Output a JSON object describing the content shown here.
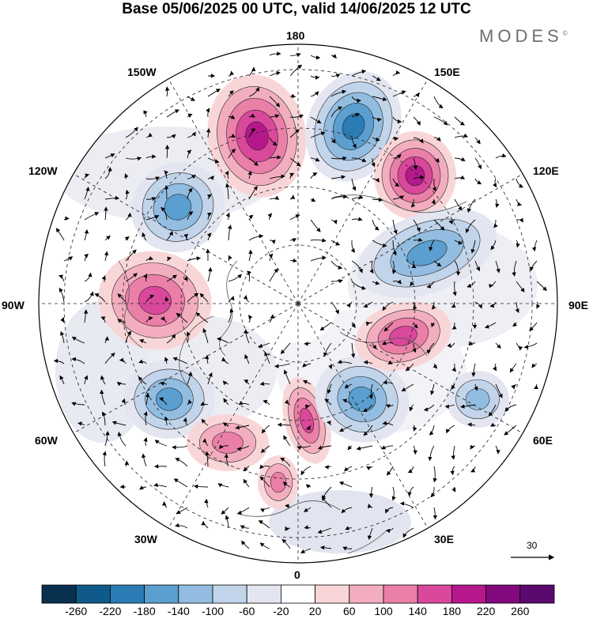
{
  "title": "Base 05/06/2025 00 UTC, valid 14/06/2025 12 UTC",
  "brand": "MODES",
  "brand_mark": "©",
  "longitude_labels": {
    "top": "180",
    "bottom": "0",
    "left": "90W",
    "right": "90E",
    "upper_left": "150W",
    "upper_left_mid": "120W",
    "upper_right": "150E",
    "upper_right_mid": "120E",
    "lower_left_mid": "60W",
    "lower_left": "30W",
    "lower_right_mid": "60E",
    "lower_right": "30E"
  },
  "reference_vector": "30",
  "colorbar": {
    "ticks": [
      "-260",
      "-220",
      "-180",
      "-140",
      "-100",
      "-60",
      "-20",
      "20",
      "60",
      "100",
      "140",
      "180",
      "220",
      "260"
    ],
    "colors": [
      "#08304f",
      "#0f5a8a",
      "#2b7bb5",
      "#5a9fcf",
      "#93bde0",
      "#c1d4ea",
      "#e3e5f0",
      "#ffffff",
      "#f8d6d8",
      "#f2aebf",
      "#ea7fa8",
      "#d9489a",
      "#b6188c",
      "#83087d",
      "#5a0a6f"
    ]
  },
  "anomalies": [
    {
      "sign": "positive",
      "level": 4
    },
    {
      "sign": "negative",
      "level": 4
    },
    {
      "sign": "positive",
      "level": 4
    },
    {
      "sign": "negative",
      "level": 3
    },
    {
      "sign": "positive",
      "level": 3
    },
    {
      "sign": "negative",
      "level": 3
    },
    {
      "sign": "positive",
      "level": 3
    },
    {
      "sign": "negative",
      "level": 3
    },
    {
      "sign": "positive",
      "level": 3
    },
    {
      "sign": "negative",
      "level": 3
    },
    {
      "sign": "positive",
      "level": 2
    },
    {
      "sign": "negative",
      "level": 2
    },
    {
      "sign": "positive",
      "level": 2
    }
  ]
}
